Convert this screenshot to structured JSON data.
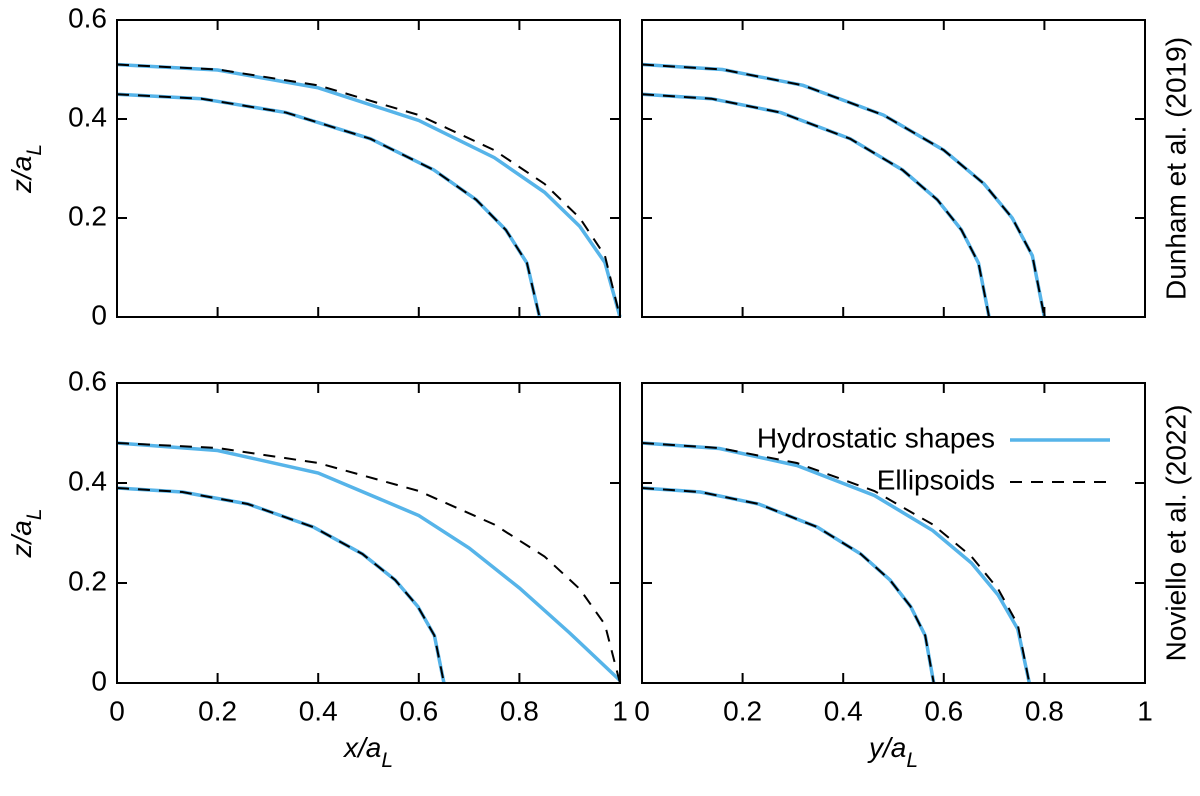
{
  "chart_data": [
    {
      "type": "line",
      "ylabel": {
        "main": "z/a",
        "sub": "L"
      },
      "xlim": [
        0,
        1
      ],
      "ylim": [
        0,
        0.6
      ],
      "xticks": [
        0,
        0.2,
        0.4,
        0.6,
        0.8,
        1
      ],
      "yticks": [
        0,
        0.2,
        0.4,
        0.6
      ],
      "series": [
        {
          "color": "#56b4e9",
          "dashed": false,
          "x": [
            0,
            0.2,
            0.4,
            0.6,
            0.75,
            0.85,
            0.92,
            0.97,
            1
          ],
          "values": [
            0.51,
            0.499,
            0.463,
            0.397,
            0.322,
            0.252,
            0.183,
            0.11,
            0
          ]
        },
        {
          "color": "#56b4e9",
          "dashed": false,
          "x": [
            0,
            0.168,
            0.336,
            0.504,
            0.63,
            0.714,
            0.773,
            0.815,
            0.84
          ],
          "values": [
            0.45,
            0.441,
            0.413,
            0.36,
            0.297,
            0.237,
            0.176,
            0.109,
            0
          ]
        },
        {
          "color": "#000000",
          "dashed": true,
          "x": [
            0,
            0.2,
            0.4,
            0.6,
            0.75,
            0.85,
            0.92,
            0.97,
            1
          ],
          "values": [
            0.51,
            0.5,
            0.468,
            0.408,
            0.337,
            0.269,
            0.2,
            0.124,
            0
          ]
        },
        {
          "color": "#000000",
          "dashed": true,
          "x": [
            0,
            0.168,
            0.336,
            0.504,
            0.63,
            0.714,
            0.773,
            0.815,
            0.84
          ],
          "values": [
            0.45,
            0.441,
            0.413,
            0.36,
            0.297,
            0.237,
            0.176,
            0.109,
            0
          ]
        }
      ]
    },
    {
      "type": "line",
      "row_label": "Dunham et al. (2019)",
      "xlim": [
        0,
        1
      ],
      "ylim": [
        0,
        0.6
      ],
      "xticks": [
        0,
        0.2,
        0.4,
        0.6,
        0.8,
        1
      ],
      "yticks": [
        0,
        0.2,
        0.4,
        0.6
      ],
      "series": [
        {
          "color": "#56b4e9",
          "dashed": false,
          "x": [
            0,
            0.16,
            0.32,
            0.48,
            0.6,
            0.68,
            0.736,
            0.776,
            0.8
          ],
          "values": [
            0.51,
            0.5,
            0.468,
            0.408,
            0.337,
            0.269,
            0.2,
            0.124,
            0
          ]
        },
        {
          "color": "#56b4e9",
          "dashed": false,
          "x": [
            0,
            0.138,
            0.276,
            0.414,
            0.518,
            0.587,
            0.635,
            0.669,
            0.69
          ],
          "values": [
            0.45,
            0.441,
            0.413,
            0.36,
            0.297,
            0.237,
            0.176,
            0.109,
            0
          ]
        },
        {
          "color": "#000000",
          "dashed": true,
          "x": [
            0,
            0.16,
            0.32,
            0.48,
            0.6,
            0.68,
            0.736,
            0.776,
            0.8
          ],
          "values": [
            0.51,
            0.5,
            0.468,
            0.408,
            0.337,
            0.269,
            0.2,
            0.124,
            0
          ]
        },
        {
          "color": "#000000",
          "dashed": true,
          "x": [
            0,
            0.138,
            0.276,
            0.414,
            0.518,
            0.587,
            0.635,
            0.669,
            0.69
          ],
          "values": [
            0.45,
            0.441,
            0.413,
            0.36,
            0.297,
            0.237,
            0.176,
            0.109,
            0
          ]
        }
      ]
    },
    {
      "type": "line",
      "ylabel": {
        "main": "z/a",
        "sub": "L"
      },
      "xlabel": {
        "main": "x/a",
        "sub": "L"
      },
      "xlim": [
        0,
        1
      ],
      "ylim": [
        0,
        0.6
      ],
      "xticks": [
        0,
        0.2,
        0.4,
        0.6,
        0.8,
        1
      ],
      "yticks": [
        0,
        0.2,
        0.4,
        0.6
      ],
      "series": [
        {
          "color": "#56b4e9",
          "dashed": false,
          "x": [
            0,
            0.2,
            0.4,
            0.6,
            0.7,
            0.8,
            0.9,
            1
          ],
          "values": [
            0.48,
            0.465,
            0.42,
            0.335,
            0.27,
            0.19,
            0.1,
            0.005
          ]
        },
        {
          "color": "#56b4e9",
          "dashed": false,
          "x": [
            0,
            0.13,
            0.26,
            0.39,
            0.488,
            0.553,
            0.598,
            0.631,
            0.65
          ],
          "values": [
            0.39,
            0.382,
            0.358,
            0.312,
            0.258,
            0.206,
            0.153,
            0.095,
            0
          ]
        },
        {
          "color": "#000000",
          "dashed": true,
          "x": [
            0,
            0.2,
            0.4,
            0.6,
            0.75,
            0.85,
            0.92,
            0.97,
            1
          ],
          "values": [
            0.48,
            0.47,
            0.44,
            0.384,
            0.317,
            0.253,
            0.188,
            0.117,
            0
          ]
        },
        {
          "color": "#000000",
          "dashed": true,
          "x": [
            0,
            0.13,
            0.26,
            0.39,
            0.488,
            0.553,
            0.598,
            0.631,
            0.65
          ],
          "values": [
            0.39,
            0.382,
            0.358,
            0.312,
            0.258,
            0.206,
            0.153,
            0.095,
            0
          ]
        }
      ]
    },
    {
      "type": "line",
      "row_label": "Noviello et al. (2022)",
      "xlabel": {
        "main": "y/a",
        "sub": "L"
      },
      "xlim": [
        0,
        1
      ],
      "ylim": [
        0,
        0.6
      ],
      "xticks": [
        0,
        0.2,
        0.4,
        0.6,
        0.8,
        1
      ],
      "yticks": [
        0,
        0.2,
        0.4,
        0.6
      ],
      "legend": "upper right",
      "series": [
        {
          "name": "Hydrostatic shapes",
          "color": "#56b4e9",
          "dashed": false,
          "x": [
            0,
            0.154,
            0.308,
            0.462,
            0.578,
            0.655,
            0.708,
            0.747,
            0.77
          ],
          "values": [
            0.48,
            0.469,
            0.435,
            0.375,
            0.305,
            0.24,
            0.176,
            0.108,
            0
          ]
        },
        {
          "color": "#56b4e9",
          "dashed": false,
          "x": [
            0,
            0.116,
            0.232,
            0.348,
            0.435,
            0.493,
            0.534,
            0.563,
            0.58
          ],
          "values": [
            0.39,
            0.382,
            0.358,
            0.312,
            0.258,
            0.206,
            0.153,
            0.095,
            0
          ]
        },
        {
          "name": "Ellipsoids",
          "color": "#000000",
          "dashed": true,
          "x": [
            0,
            0.154,
            0.308,
            0.462,
            0.578,
            0.655,
            0.708,
            0.747,
            0.77
          ],
          "values": [
            0.48,
            0.47,
            0.44,
            0.384,
            0.317,
            0.253,
            0.188,
            0.117,
            0
          ]
        },
        {
          "color": "#000000",
          "dashed": true,
          "x": [
            0,
            0.116,
            0.232,
            0.348,
            0.435,
            0.493,
            0.534,
            0.563,
            0.58
          ],
          "values": [
            0.39,
            0.382,
            0.358,
            0.312,
            0.258,
            0.206,
            0.153,
            0.095,
            0
          ]
        }
      ]
    }
  ]
}
